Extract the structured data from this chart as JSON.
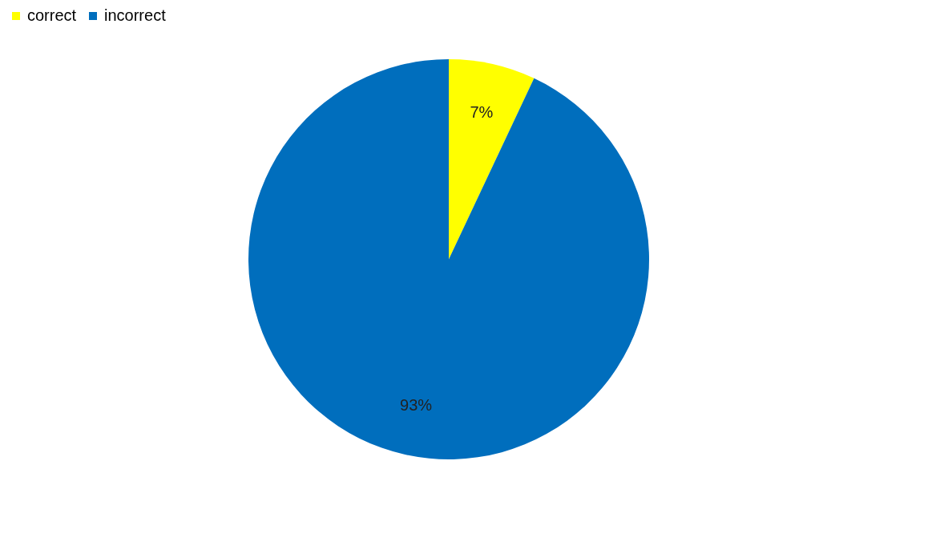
{
  "chart_data": {
    "type": "pie",
    "categories": [
      "correct",
      "incorrect"
    ],
    "values": [
      7,
      93
    ],
    "colors": [
      "#ffff00",
      "#006ebd"
    ],
    "value_labels": [
      "7%",
      "93%"
    ],
    "legend": "top"
  }
}
